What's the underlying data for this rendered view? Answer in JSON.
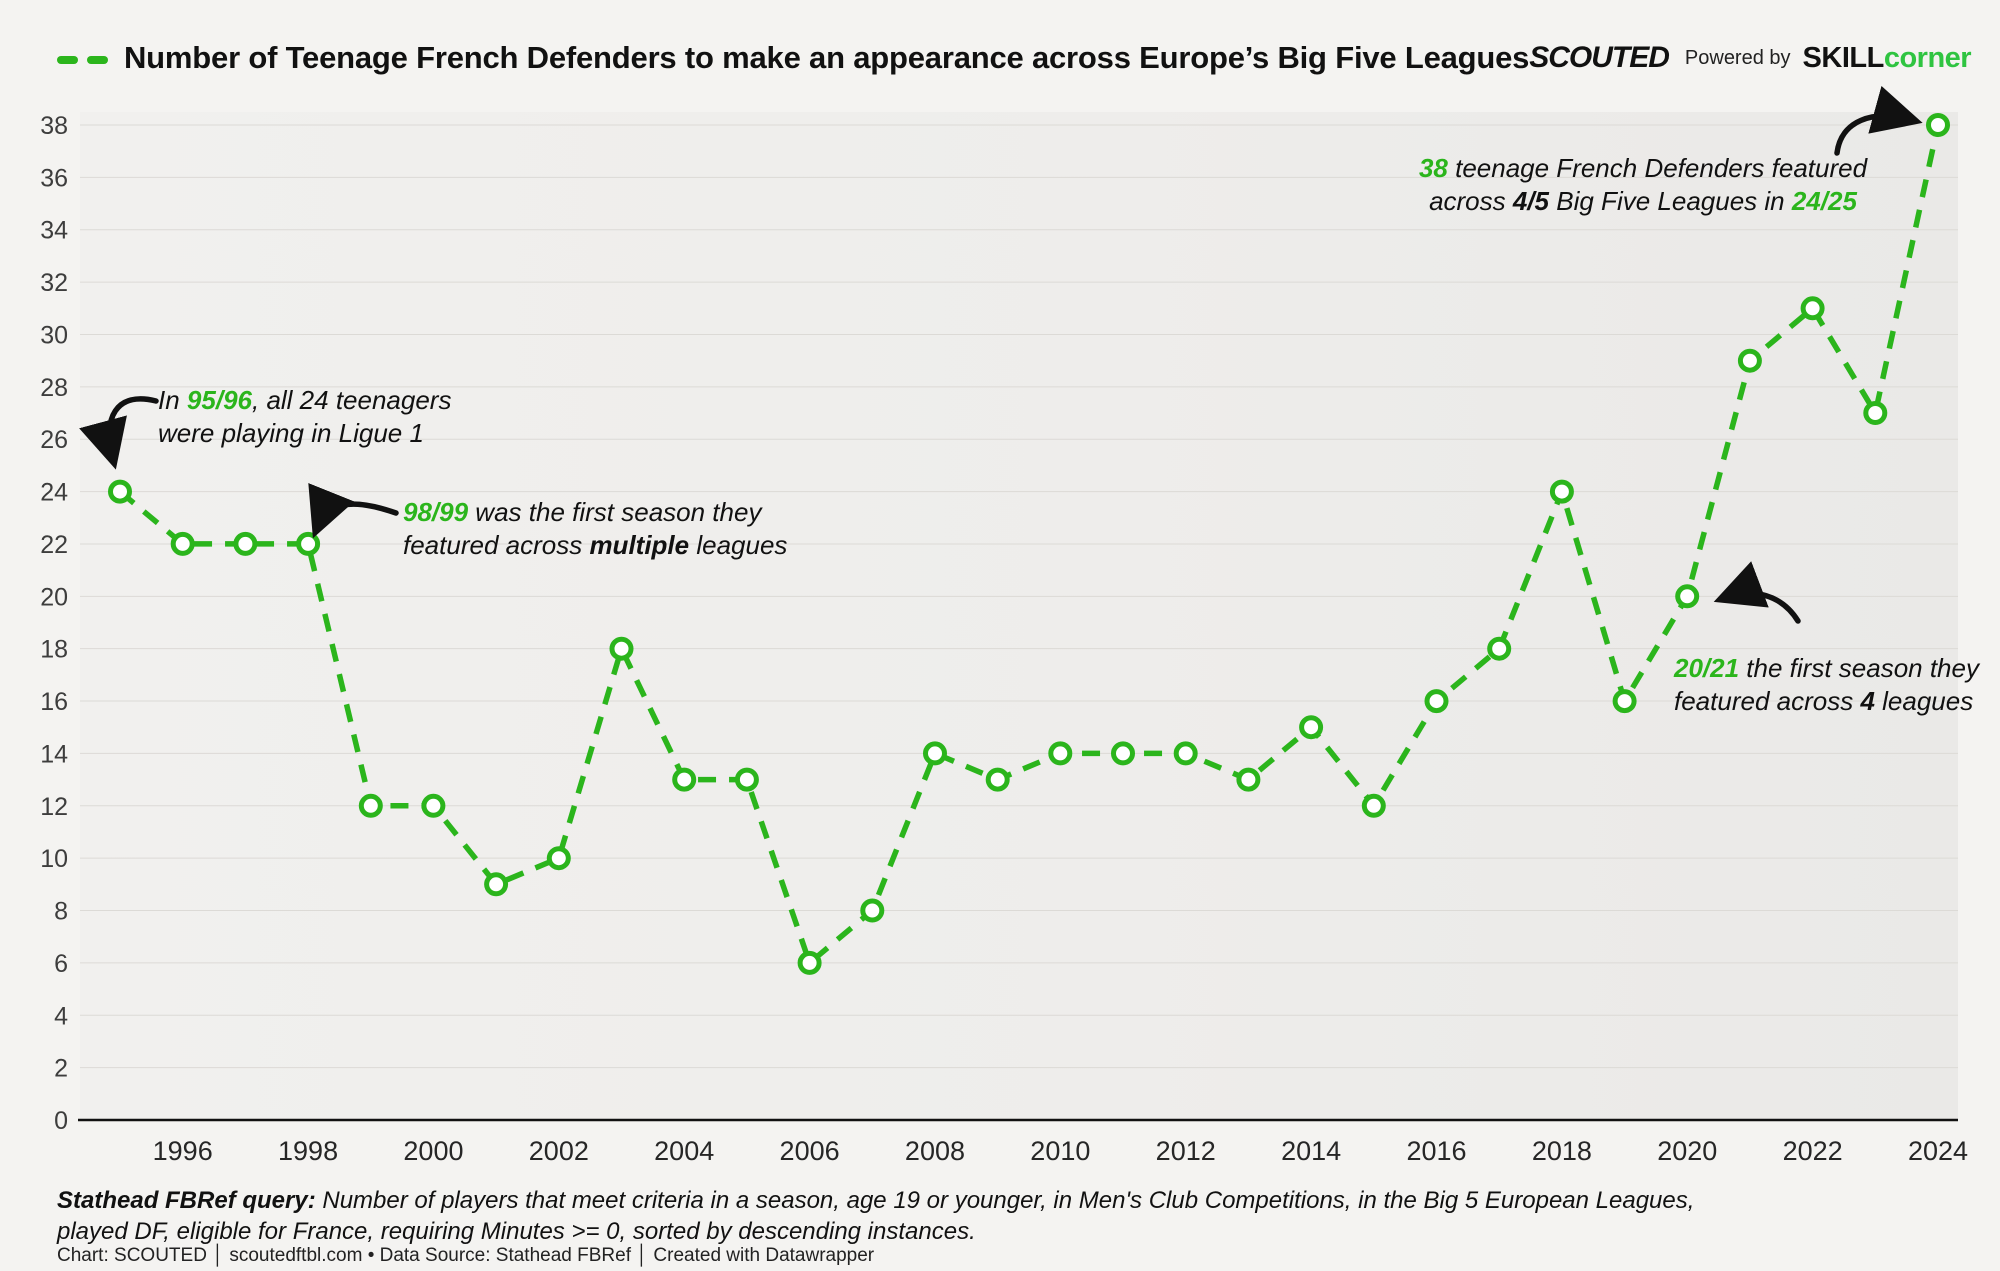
{
  "colors": {
    "green": "#2bb51c",
    "brand_green": "#2fc441",
    "grid": "#dcdad6",
    "axis": "#111111"
  },
  "header": {
    "title": "Number of Teenage French Defenders to make an appearance across Europe’s Big Five Leagues",
    "brand": "SCOUTED",
    "powered_by": "Powered by",
    "brand2_part1": "SKILL",
    "brand2_part2": "corner"
  },
  "chart_data": {
    "type": "line",
    "title": "Number of Teenage French Defenders to make an appearance across Europe's Big Five Leagues",
    "x": [
      1995,
      1996,
      1997,
      1998,
      1999,
      2000,
      2001,
      2002,
      2003,
      2004,
      2005,
      2006,
      2007,
      2008,
      2009,
      2010,
      2011,
      2012,
      2013,
      2014,
      2015,
      2016,
      2017,
      2018,
      2019,
      2020,
      2021,
      2022,
      2023,
      2024
    ],
    "values": [
      24,
      22,
      22,
      22,
      12,
      12,
      9,
      10,
      18,
      13,
      13,
      6,
      8,
      14,
      13,
      14,
      14,
      14,
      13,
      15,
      12,
      16,
      18,
      24,
      16,
      20,
      29,
      31,
      27,
      38
    ],
    "xticks": [
      1996,
      1998,
      2000,
      2002,
      2004,
      2006,
      2008,
      2010,
      2012,
      2014,
      2016,
      2018,
      2020,
      2022,
      2024
    ],
    "ylim": [
      0,
      38
    ],
    "ytick_step": 2,
    "grid": true,
    "legend_position": "none",
    "line_color": "#2bb51c",
    "line_style": "dashed",
    "marker": "open-circle"
  },
  "annotations": {
    "a1": {
      "l1s1": "In ",
      "l1hl": "95/96",
      "l1s2": ", all 24 teenagers",
      "l2": "were playing in Ligue 1"
    },
    "a2": {
      "l1hl": "98/99",
      "l1s1": " was the first season they",
      "l2s1": "featured across ",
      "l2b": "multiple",
      "l2s2": " leagues"
    },
    "a3": {
      "l1hl": "38",
      "l1s1": " teenage French Defenders featured",
      "l2s1": "across  ",
      "l2b": "4/5",
      "l2s2": " Big Five Leagues in ",
      "l2hl": "24/25"
    },
    "a4": {
      "l1hl": "20/21",
      "l1s1": " the first season they",
      "l2s1": "featured across ",
      "l2b": "4",
      "l2s2": " leagues"
    }
  },
  "footer": {
    "query_label": "Stathead FBRef query:",
    "query_text": " Number of players that meet criteria in a season, age 19 or younger, in Men's Club Competitions, in the Big 5 European Leagues, played DF, eligible for France, requiring Minutes >= 0, sorted by descending instances.",
    "credits": "Chart: SCOUTED │ scoutedftbl.com • Data Source: Stathead FBRef │ Created with Datawrapper"
  }
}
